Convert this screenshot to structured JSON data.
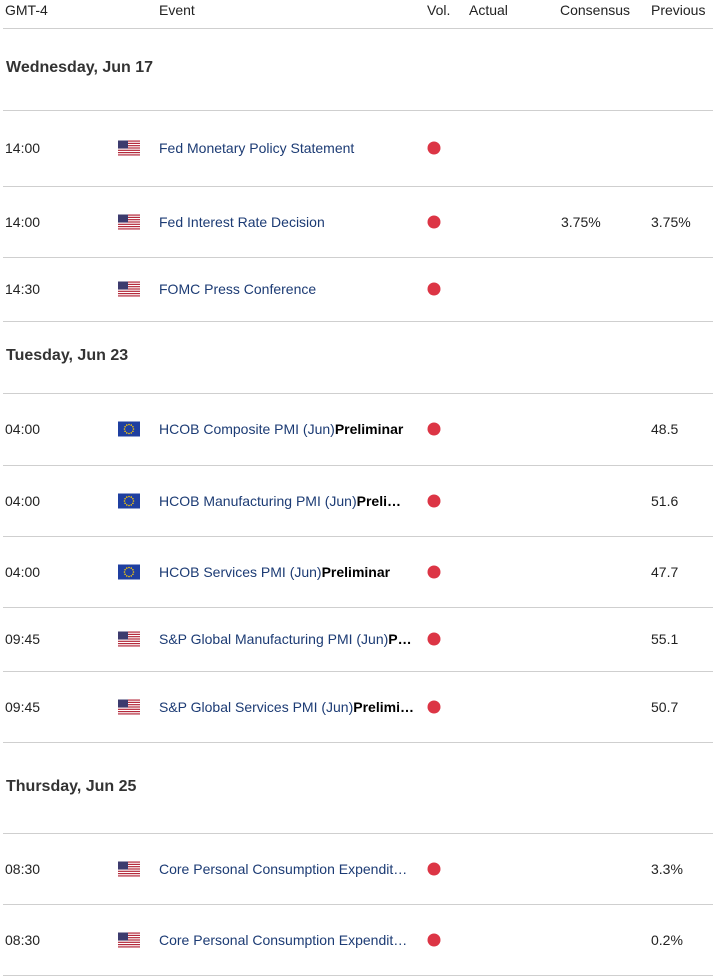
{
  "header": {
    "columns": [
      "GMT-4",
      "Event",
      "Vol.",
      "Actual",
      "Consensus",
      "Previous"
    ]
  },
  "days": [
    {
      "label": "Wednesday, Jun 17",
      "events": [
        {
          "time": "14:00",
          "flag": "us",
          "event": "Fed Monetary Policy Statement"
        },
        {
          "time": "14:00",
          "flag": "us",
          "event": "Fed Interest Rate Decision",
          "consensus": "3.75%",
          "previous": "3.75%"
        },
        {
          "time": "14:30",
          "flag": "us",
          "event": "FOMC Press Conference"
        }
      ]
    },
    {
      "label": "Tuesday, Jun 23",
      "events": [
        {
          "time": "04:00",
          "flag": "eu",
          "event": "HCOB Composite PMI (Jun)",
          "event_bold": "Preliminar",
          "previous": "48.5"
        },
        {
          "time": "04:00",
          "flag": "eu",
          "event": "HCOB Manufacturing PMI (Jun)",
          "event_bold": "Preli…",
          "previous": "51.6"
        },
        {
          "time": "04:00",
          "flag": "eu",
          "event": "HCOB Services PMI (Jun)",
          "event_bold": "Preliminar",
          "previous": "47.7"
        },
        {
          "time": "09:45",
          "flag": "us",
          "event": "S&P Global Manufacturing PMI (Jun)",
          "event_bold": "P…",
          "previous": "55.1"
        },
        {
          "time": "09:45",
          "flag": "us",
          "event": "S&P Global Services PMI (Jun)",
          "event_bold": "Prelimi…",
          "previous": "50.7"
        }
      ]
    },
    {
      "label": "Thursday, Jun 25",
      "events": [
        {
          "time": "08:30",
          "flag": "us",
          "event": "Core Personal Consumption Expendit…",
          "previous": "3.3%"
        },
        {
          "time": "08:30",
          "flag": "us",
          "event": "Core Personal Consumption Expendit…",
          "previous": "0.2%"
        }
      ]
    }
  ]
}
